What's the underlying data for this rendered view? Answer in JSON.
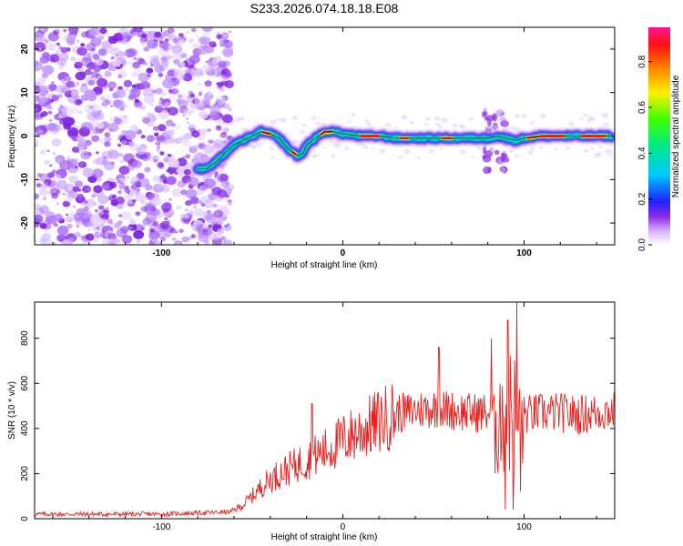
{
  "title": "S233.2026.074.18.18.E08",
  "chart_data": [
    {
      "type": "heatmap",
      "name": "spectrogram",
      "xlabel": "Height of straight line (km)",
      "ylabel": "Frequency (Hz)",
      "xlim": [
        -170,
        150
      ],
      "ylim": [
        -25,
        25
      ],
      "xticks": [
        -100,
        0,
        100
      ],
      "yticks": [
        -20,
        -10,
        0,
        10,
        20
      ],
      "colorbar": {
        "label": "Normalized spectral amplitude",
        "range": [
          0.0,
          0.95
        ],
        "ticks": [
          0.0,
          0.2,
          0.4,
          0.6,
          0.8
        ],
        "tick_labels": [
          "0.0",
          "0.2",
          "0.4",
          "0.6",
          "0.8"
        ]
      },
      "ridge": {
        "x": [
          -80,
          -75,
          -70,
          -65,
          -60,
          -55,
          -50,
          -45,
          -40,
          -35,
          -30,
          -25,
          -22,
          -20,
          -15,
          -10,
          -5,
          0,
          10,
          20,
          30,
          40,
          50,
          60,
          70,
          80,
          85,
          90,
          95,
          100,
          110,
          120,
          130,
          140,
          148
        ],
        "y": [
          -7.5,
          -7.5,
          -6,
          -4,
          -2,
          -1,
          0,
          1,
          0.5,
          -0.5,
          -3,
          -4.5,
          -4,
          -2,
          -0.5,
          1,
          1,
          0.5,
          0,
          0,
          -0.5,
          -0.5,
          -0.5,
          -0.5,
          -0.5,
          -0.5,
          0,
          -0.5,
          -1,
          -0.5,
          0,
          0,
          0,
          0,
          0
        ]
      }
    },
    {
      "type": "line",
      "name": "snr",
      "xlabel": "Height of straight line (km)",
      "ylabel": "SNR (10 * v/v)",
      "xlim": [
        -170,
        150
      ],
      "ylim": [
        0,
        960
      ],
      "xticks": [
        -100,
        0,
        100
      ],
      "yticks": [
        0,
        200,
        400,
        600,
        800
      ],
      "color": "#e8211e",
      "envelope": {
        "x": [
          -170,
          -100,
          -62,
          -55,
          -50,
          -45,
          -40,
          -35,
          -30,
          -25,
          -20,
          -15,
          -10,
          -5,
          0,
          5,
          10,
          15,
          20,
          25,
          30,
          35,
          40,
          50,
          60,
          70,
          80,
          85,
          90,
          95,
          100,
          110,
          120,
          130,
          140,
          150
        ],
        "y": [
          20,
          20,
          30,
          60,
          100,
          140,
          175,
          200,
          220,
          240,
          260,
          280,
          300,
          320,
          350,
          370,
          390,
          410,
          430,
          450,
          470,
          470,
          480,
          490,
          480,
          470,
          470,
          460,
          480,
          470,
          460,
          470,
          470,
          460,
          470,
          480
        ]
      },
      "spikes": [
        {
          "x": -17,
          "y": 510
        },
        {
          "x": 53,
          "y": 760
        },
        {
          "x": 82,
          "y": 800
        },
        {
          "x": 88,
          "y": 590
        },
        {
          "x": 89.5,
          "y": 40
        },
        {
          "x": 91,
          "y": 880
        },
        {
          "x": 94,
          "y": 40
        },
        {
          "x": 96,
          "y": 960
        },
        {
          "x": 98,
          "y": 120
        }
      ]
    }
  ]
}
